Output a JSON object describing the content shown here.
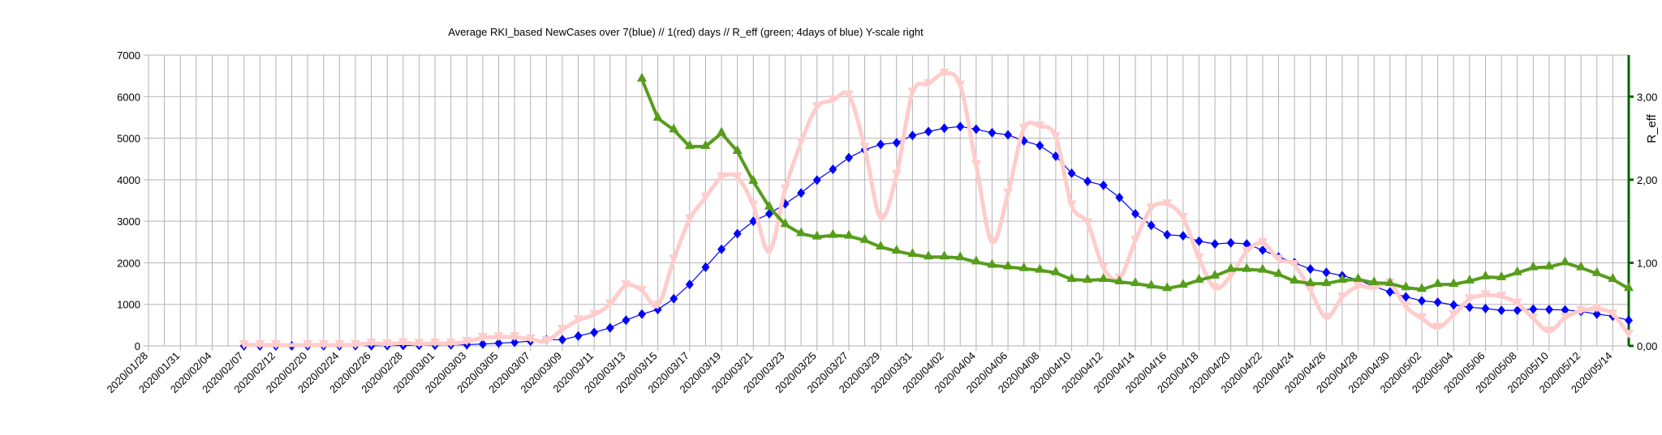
{
  "chart_data": {
    "type": "line",
    "title": "Average RKI_based NewCases over 7(blue) // 1(red) days //  R_eff (green; 4days of blue) Y-scale right",
    "xlabel": "",
    "ylabel": "",
    "y2label": "R_eff",
    "ylim": [
      0,
      7000
    ],
    "y2lim": [
      0,
      3.5
    ],
    "grid": true,
    "category_count": 94,
    "x_tick_labels": [
      "2020/01/28",
      "2020/01/31",
      "2020/02/04",
      "2020/02/07",
      "2020/02/12",
      "2020/02/20",
      "2020/02/24",
      "2020/02/26",
      "2020/02/28",
      "2020/03/01",
      "2020/03/03",
      "2020/03/05",
      "2020/03/07",
      "2020/03/09",
      "2020/03/11",
      "2020/03/13",
      "2020/03/15",
      "2020/03/17",
      "2020/03/19",
      "2020/03/21",
      "2020/03/23",
      "2020/03/25",
      "2020/03/27",
      "2020/03/29",
      "2020/03/31",
      "2020/04/02",
      "2020/04/04",
      "2020/04/06",
      "2020/04/08",
      "2020/04/10",
      "2020/04/12",
      "2020/04/14",
      "2020/04/16",
      "2020/04/18",
      "2020/04/20",
      "2020/04/22",
      "2020/04/24",
      "2020/04/26",
      "2020/04/28",
      "2020/04/30",
      "2020/05/02",
      "2020/05/04",
      "2020/05/06",
      "2020/05/08",
      "2020/05/10",
      "2020/05/12",
      "2020/05/14"
    ],
    "y_ticks": [
      "0",
      "1000",
      "2000",
      "3000",
      "4000",
      "5000",
      "6000",
      "7000"
    ],
    "y2_ticks": [
      "0,00",
      "1,00",
      "2,00",
      "3,00"
    ],
    "series": [
      {
        "name": "7-day average (blue)",
        "axis": "left",
        "color": "#0000ff",
        "values": [
          null,
          null,
          null,
          null,
          null,
          null,
          0,
          0,
          0,
          0,
          1,
          2,
          3,
          4,
          5,
          8,
          10,
          14,
          18,
          24,
          30,
          45,
          65,
          85,
          115,
          145,
          150,
          240,
          325,
          435,
          620,
          765,
          875,
          1135,
          1480,
          1895,
          2325,
          2700,
          3000,
          3180,
          3420,
          3680,
          3990,
          4250,
          4530,
          4720,
          4850,
          4890,
          5065,
          5160,
          5240,
          5280,
          5215,
          5130,
          5080,
          4935,
          4820,
          4565,
          4155,
          3960,
          3865,
          3570,
          3180,
          2900,
          2675,
          2650,
          2520,
          2455,
          2480,
          2455,
          2305,
          2140,
          2000,
          1850,
          1770,
          1690,
          1590,
          1430,
          1300,
          1180,
          1085,
          1050,
          985,
          930,
          900,
          855,
          855,
          885,
          875,
          865,
          830,
          765,
          715,
          615
        ]
      },
      {
        "name": "1-day (red)",
        "axis": "left",
        "color": "#ffcccc",
        "values": [
          null,
          null,
          null,
          null,
          null,
          null,
          20,
          25,
          20,
          null,
          20,
          20,
          20,
          25,
          60,
          45,
          70,
          50,
          60,
          60,
          100,
          195,
          210,
          210,
          160,
          115,
          390,
          620,
          750,
          1005,
          1460,
          1330,
          975,
          2080,
          3050,
          3570,
          4060,
          4060,
          3380,
          2270,
          3770,
          4900,
          5750,
          5910,
          6030,
          4770,
          3085,
          4120,
          6100,
          6310,
          6560,
          6270,
          4350,
          2500,
          3670,
          5230,
          5290,
          5030,
          3380,
          2955,
          1880,
          1625,
          2535,
          3310,
          3410,
          3080,
          2110,
          1395,
          1690,
          2270,
          2480,
          2080,
          1950,
          1330,
          680,
          1170,
          1430,
          1395,
          1505,
          940,
          660,
          440,
          745,
          1125,
          1220,
          1190,
          1025,
          660,
          350,
          680,
          845,
          895,
          765,
          270
        ]
      },
      {
        "name": "R_eff (green)",
        "axis": "right",
        "color": "#579d1c",
        "values": [
          null,
          null,
          null,
          null,
          null,
          null,
          null,
          null,
          null,
          null,
          null,
          null,
          null,
          null,
          null,
          null,
          null,
          null,
          null,
          null,
          null,
          null,
          null,
          null,
          null,
          null,
          null,
          null,
          null,
          null,
          null,
          3.21,
          2.74,
          2.6,
          2.4,
          2.4,
          2.56,
          2.34,
          1.98,
          1.67,
          1.46,
          1.35,
          1.31,
          1.33,
          1.32,
          1.27,
          1.19,
          1.14,
          1.1,
          1.07,
          1.07,
          1.06,
          1.01,
          0.97,
          0.95,
          0.93,
          0.91,
          0.88,
          0.8,
          0.79,
          0.8,
          0.77,
          0.75,
          0.72,
          0.69,
          0.73,
          0.79,
          0.84,
          0.92,
          0.92,
          0.91,
          0.86,
          0.78,
          0.75,
          0.75,
          0.79,
          0.8,
          0.76,
          0.75,
          0.7,
          0.68,
          0.74,
          0.74,
          0.78,
          0.83,
          0.82,
          0.88,
          0.94,
          0.95,
          1.0,
          0.94,
          0.87,
          0.8,
          0.69
        ]
      }
    ],
    "right_axis_color": "#006400",
    "grid_color": "#b3b3b3"
  }
}
